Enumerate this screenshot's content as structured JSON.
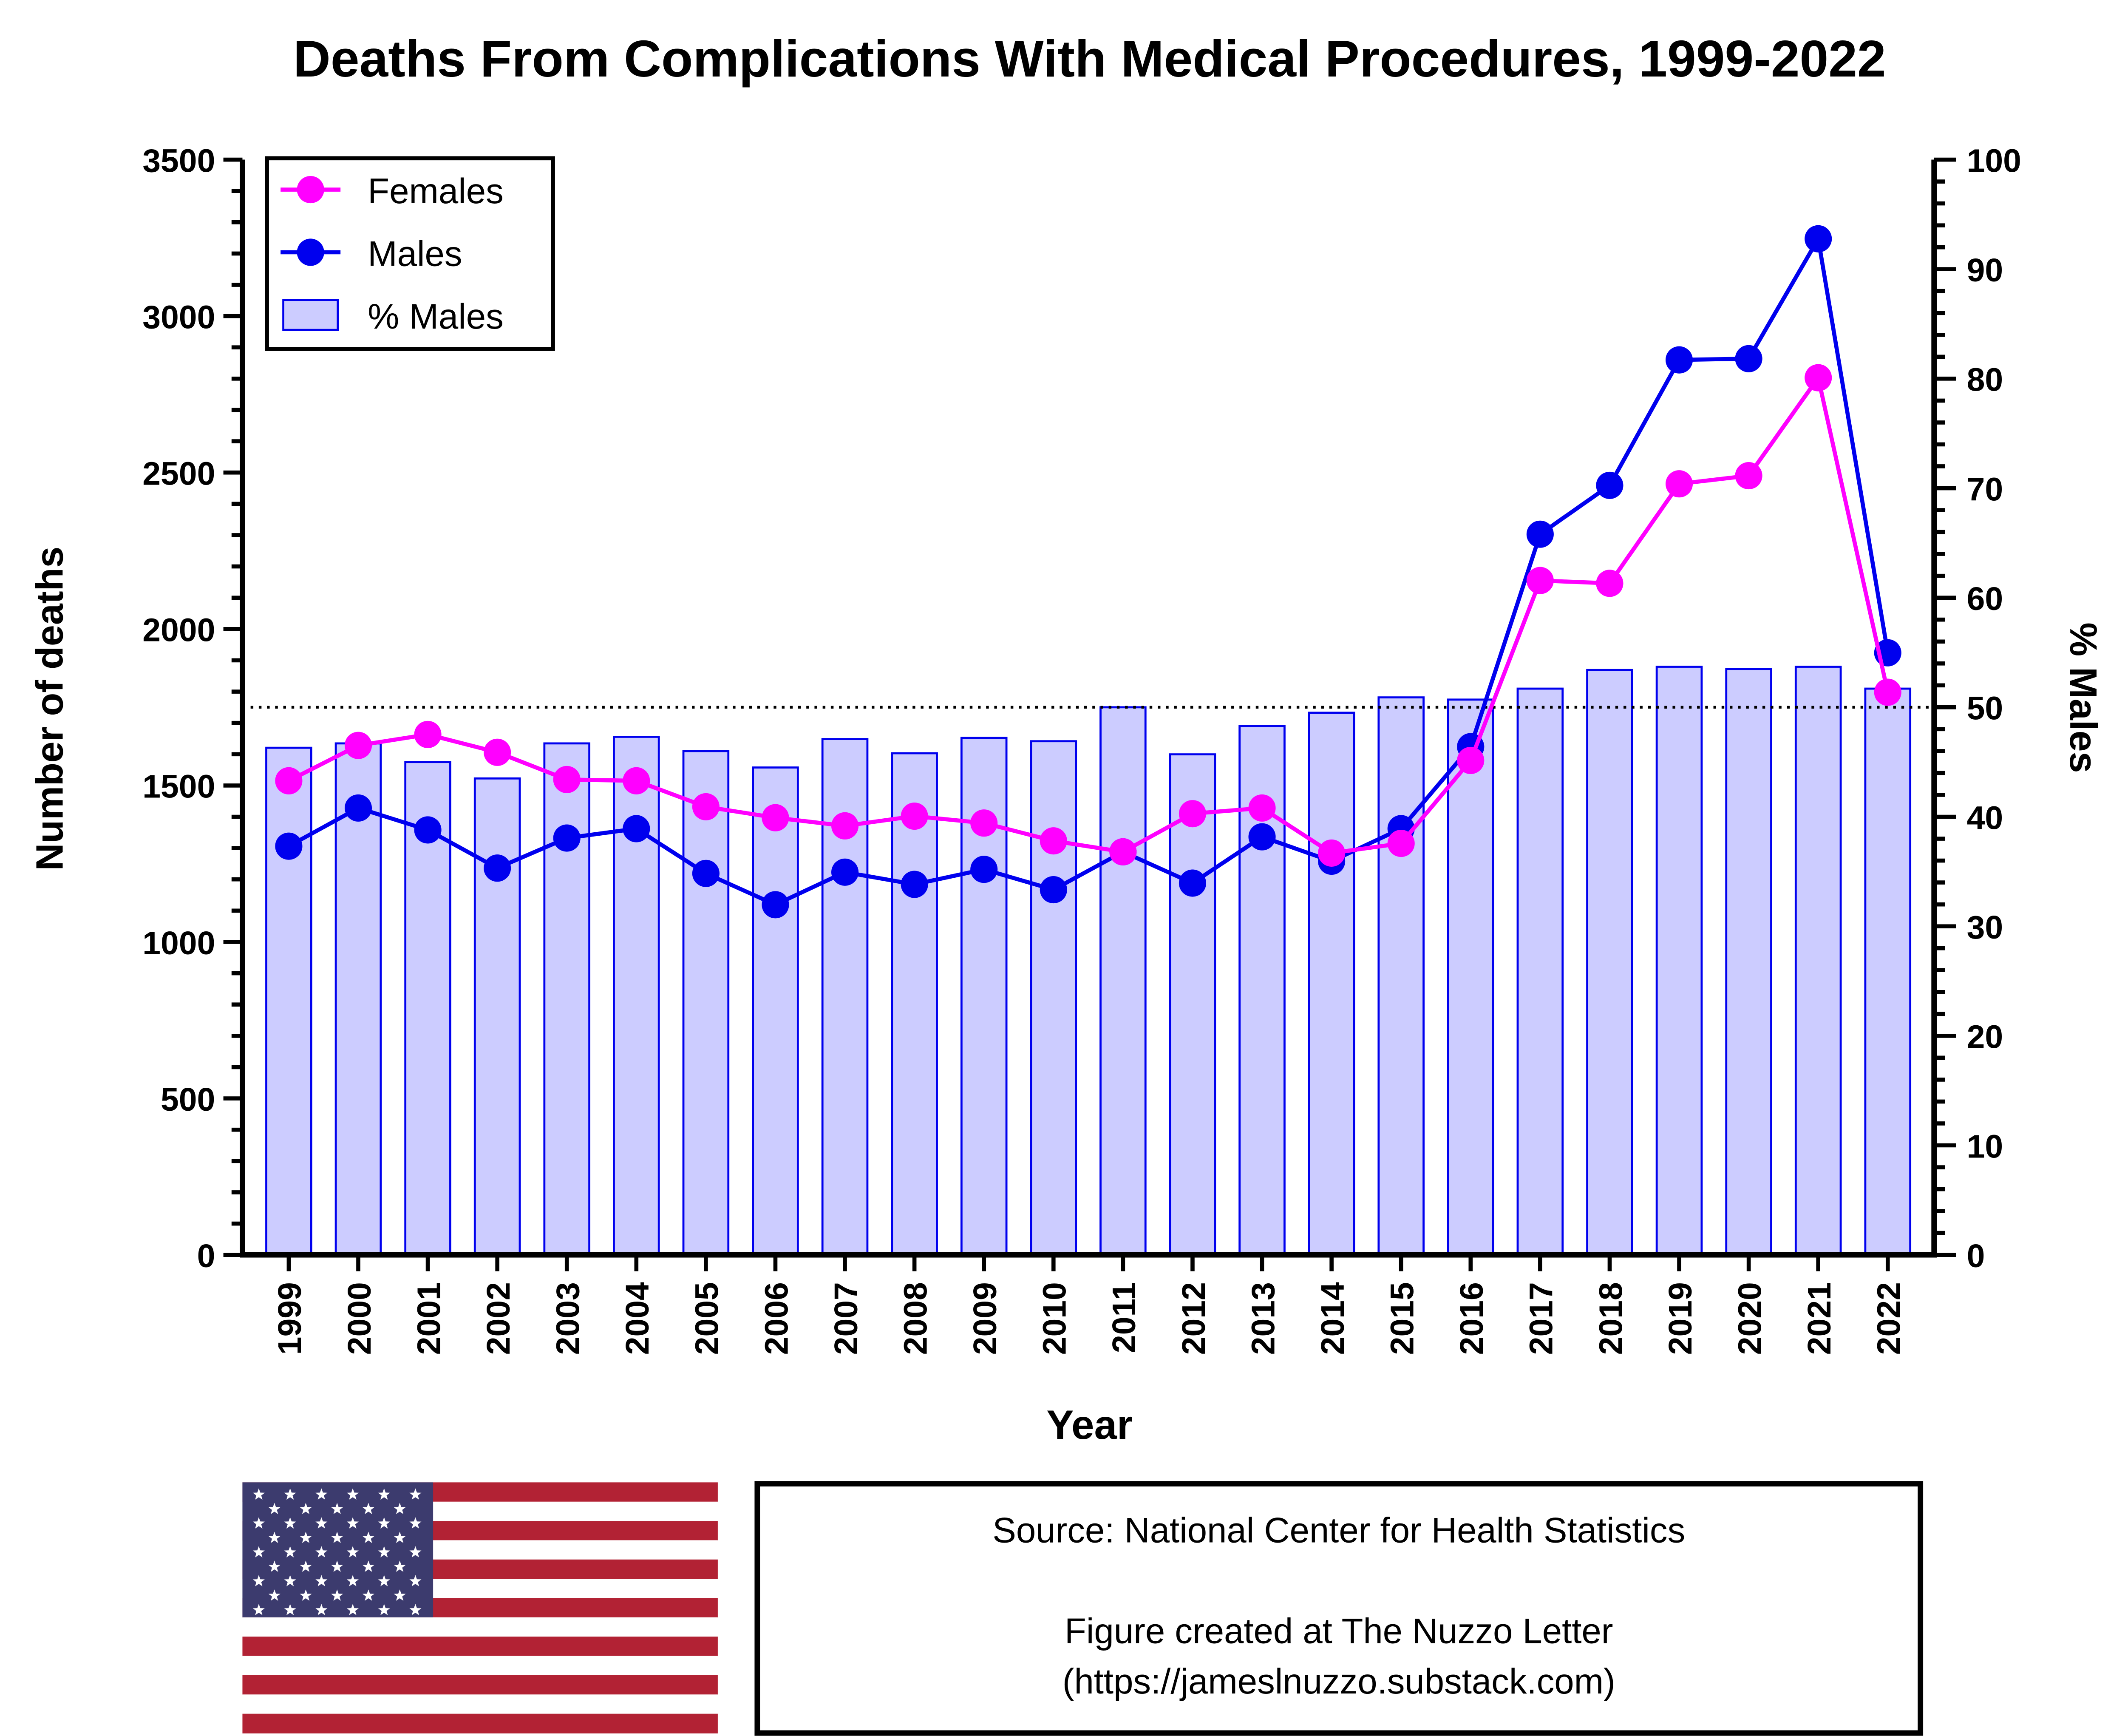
{
  "chart_data": {
    "type": "bar+line",
    "title": "Deaths From Complications With Medical Procedures, 1999-2022",
    "xlabel": "Year",
    "ylabel": "Number of deaths",
    "y2label": "% Males",
    "ylim": [
      0,
      3500
    ],
    "y2lim": [
      0,
      100
    ],
    "yticks": [
      "0",
      "500",
      "1000",
      "1500",
      "2000",
      "2500",
      "3000",
      "3500"
    ],
    "y2ticks": [
      "0",
      "10",
      "20",
      "30",
      "40",
      "50",
      "60",
      "70",
      "80",
      "90",
      "100"
    ],
    "reference_line": {
      "axis": "y2",
      "value": 50,
      "style": "dotted"
    },
    "legend_position": "top-left",
    "categories": [
      "1999",
      "2000",
      "2001",
      "2002",
      "2003",
      "2004",
      "2005",
      "2006",
      "2007",
      "2008",
      "2009",
      "2010",
      "2011",
      "2012",
      "2013",
      "2014",
      "2015",
      "2016",
      "2017",
      "2018",
      "2019",
      "2020",
      "2021",
      "2022"
    ],
    "series": [
      {
        "name": "Females",
        "type": "line",
        "axis": "y",
        "color": "#ff00ff",
        "values": [
          1515,
          1628,
          1663,
          1606,
          1519,
          1515,
          1432,
          1397,
          1371,
          1402,
          1380,
          1323,
          1288,
          1410,
          1428,
          1284,
          1315,
          1580,
          2155,
          2146,
          2464,
          2490,
          2803,
          1798
        ]
      },
      {
        "name": "Males",
        "type": "line",
        "axis": "y",
        "color": "#0000ee",
        "values": [
          1306,
          1428,
          1358,
          1236,
          1332,
          1362,
          1219,
          1119,
          1223,
          1184,
          1232,
          1167,
          1288,
          1188,
          1336,
          1258,
          1362,
          1624,
          2303,
          2459,
          2860,
          2864,
          3247,
          1924
        ]
      },
      {
        "name": "% Males",
        "type": "bar",
        "axis": "y2",
        "color": "#ccccff",
        "values": [
          46.3,
          46.7,
          45.0,
          43.5,
          46.7,
          47.3,
          46.0,
          44.5,
          47.1,
          45.8,
          47.2,
          46.9,
          50.0,
          45.7,
          48.3,
          49.5,
          50.9,
          50.7,
          51.7,
          53.4,
          53.7,
          53.5,
          53.7,
          51.7
        ]
      }
    ]
  },
  "footer": {
    "source": "Source: National Center for Health Statistics",
    "credit_line1": "Figure created at The Nuzzo Letter",
    "credit_line2": "(https://jameslnuzzo.substack.com)"
  }
}
